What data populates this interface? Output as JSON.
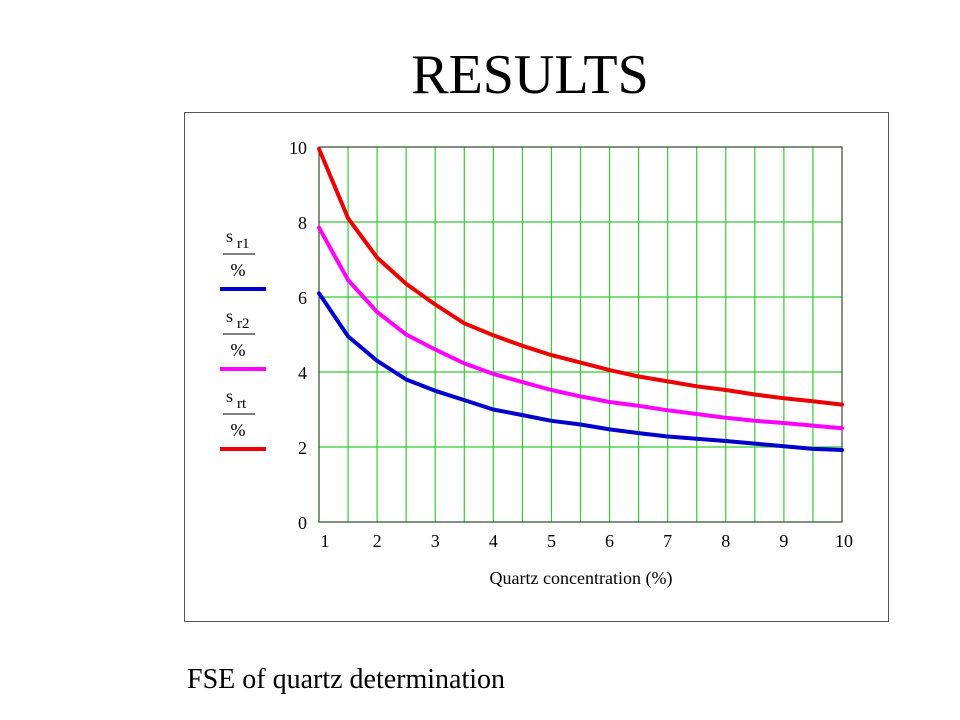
{
  "page": {
    "title": "RESULTS",
    "caption": "FSE of quartz determination"
  },
  "chart_data": {
    "type": "line",
    "title": "",
    "xlabel": "Quartz concentration (%)",
    "ylabel": "",
    "xlim": [
      1,
      10
    ],
    "ylim": [
      0,
      10
    ],
    "xticks": [
      1,
      2,
      3,
      4,
      5,
      6,
      7,
      8,
      9,
      10
    ],
    "yticks": [
      0,
      2,
      4,
      6,
      8,
      10
    ],
    "grid": true,
    "grid_color": "#33cc33",
    "legend_position": "left",
    "x": [
      1,
      1.5,
      2,
      2.5,
      3,
      3.5,
      4,
      4.5,
      5,
      5.5,
      6,
      6.5,
      7,
      7.5,
      8,
      8.5,
      9,
      9.5,
      10
    ],
    "series": [
      {
        "name_main": "s",
        "name_sub": "r1",
        "name_denominator": "%",
        "color": "#0000cc",
        "values": [
          6.1,
          4.95,
          4.3,
          3.8,
          3.5,
          3.25,
          3.0,
          2.85,
          2.7,
          2.6,
          2.47,
          2.37,
          2.28,
          2.22,
          2.16,
          2.09,
          2.02,
          1.95,
          1.92
        ]
      },
      {
        "name_main": "s",
        "name_sub": "r2",
        "name_denominator": "%",
        "color": "#ff00ff",
        "values": [
          7.85,
          6.45,
          5.6,
          5.0,
          4.6,
          4.23,
          3.95,
          3.73,
          3.52,
          3.35,
          3.2,
          3.1,
          2.98,
          2.88,
          2.78,
          2.7,
          2.64,
          2.57,
          2.5
        ]
      },
      {
        "name_main": "s",
        "name_sub": "rt",
        "name_denominator": "%",
        "color": "#ee0000",
        "values": [
          9.95,
          8.1,
          7.05,
          6.35,
          5.8,
          5.3,
          4.98,
          4.7,
          4.45,
          4.25,
          4.05,
          3.88,
          3.75,
          3.62,
          3.52,
          3.4,
          3.3,
          3.22,
          3.13
        ]
      }
    ]
  }
}
